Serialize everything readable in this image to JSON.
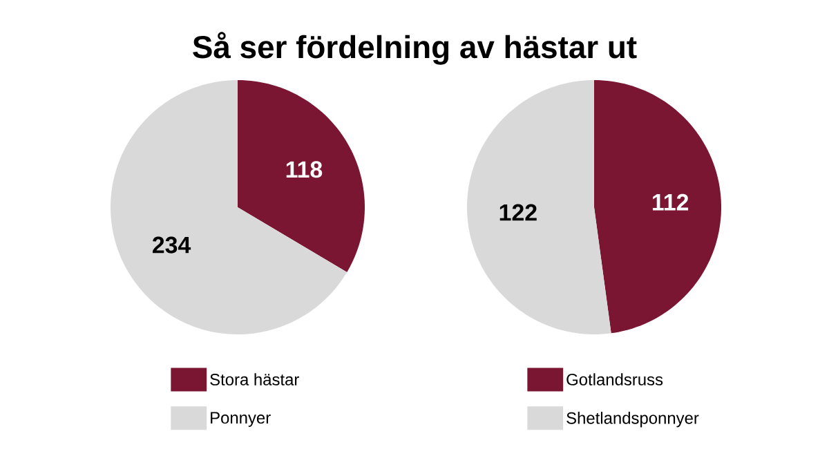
{
  "chart_data": [
    {
      "type": "pie",
      "title": "Så ser fördelning av hästar ut",
      "categories": [
        "Stora hästar",
        "Ponnyer"
      ],
      "values": [
        118,
        234
      ],
      "colors": [
        "#7a1632",
        "#d9d9d9"
      ],
      "data_labels": true,
      "legend": "bottom"
    },
    {
      "type": "pie",
      "categories": [
        "Gotlandsruss",
        "Shetlandsponnyer"
      ],
      "values": [
        112,
        122
      ],
      "colors": [
        "#7a1632",
        "#d9d9d9"
      ],
      "data_labels": true,
      "legend": "bottom"
    }
  ]
}
